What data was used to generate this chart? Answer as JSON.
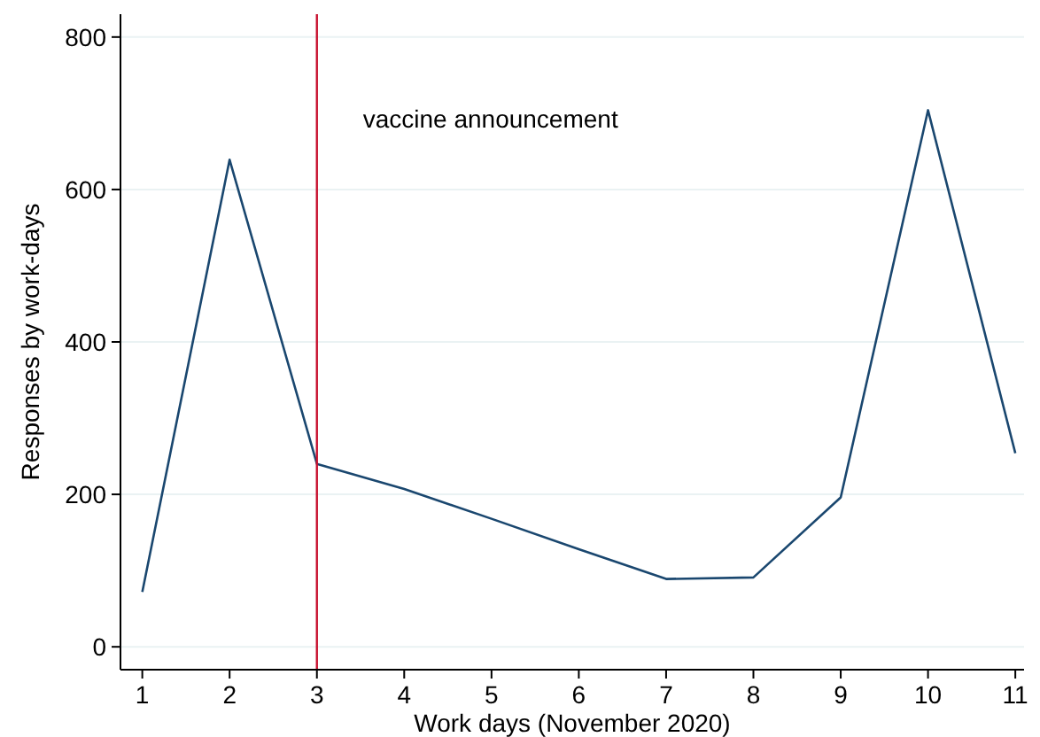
{
  "chart_data": {
    "type": "line",
    "xlabel": "Work days (November 2020)",
    "ylabel": "Responses by work-days",
    "x": [
      1,
      2,
      3,
      4,
      5,
      6,
      7,
      8,
      9,
      10,
      11
    ],
    "series": [
      {
        "color": "#1a476f",
        "values": [
          72,
          639,
          240,
          207,
          168,
          128,
          89,
          91,
          196,
          704,
          254
        ]
      }
    ],
    "xlim": [
      0.75,
      11.1
    ],
    "xticks": [
      1,
      2,
      3,
      4,
      5,
      6,
      7,
      8,
      9,
      10,
      11
    ],
    "ylim": [
      -30,
      830
    ],
    "yticks": [
      0,
      200,
      400,
      600,
      800
    ],
    "ref_lines": [
      {
        "axis": "x",
        "value": 3,
        "label": "vaccine announcement",
        "color": "#c8102e"
      }
    ],
    "grid": "y",
    "marker": "none",
    "line_style": "solid"
  }
}
